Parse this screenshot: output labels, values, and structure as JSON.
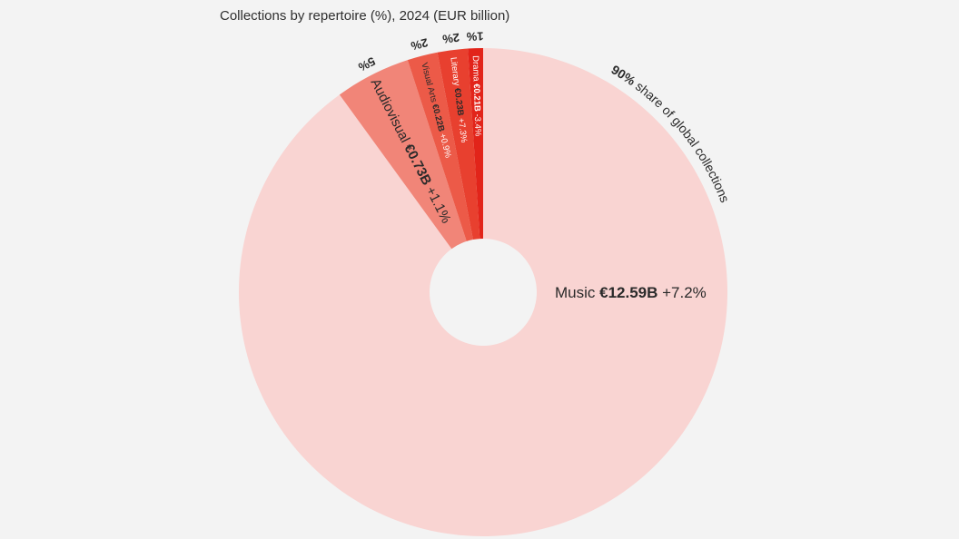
{
  "chart_data": {
    "type": "pie",
    "title": "Collections by repertoire (%), 2024 (EUR billion)",
    "slices": [
      {
        "name": "Music",
        "share": 90,
        "share_label": "90%",
        "share_note": "share of global collections",
        "value_label": "€12.59B",
        "change_label": "+7.2%",
        "color": "#f9d4d2"
      },
      {
        "name": "Audiovisual",
        "share": 5,
        "share_label": "5%",
        "value_label": "€0.73B",
        "change_label": "+1.1%",
        "color": "#f18578"
      },
      {
        "name": "Visual Arts",
        "share": 2,
        "share_label": "2%",
        "value_label": "€0.22B",
        "change_label": "+0.9%",
        "color": "#ec5a48"
      },
      {
        "name": "Literary",
        "share": 2,
        "share_label": "2%",
        "value_label": "€0.23B",
        "change_label": "+7.3%",
        "color": "#e8402f"
      },
      {
        "name": "Drama",
        "share": 1,
        "share_label": "1%",
        "value_label": "€0.21B",
        "change_label": "-3.4%",
        "color": "#e2241a"
      }
    ],
    "legend": "none",
    "grid": false
  }
}
